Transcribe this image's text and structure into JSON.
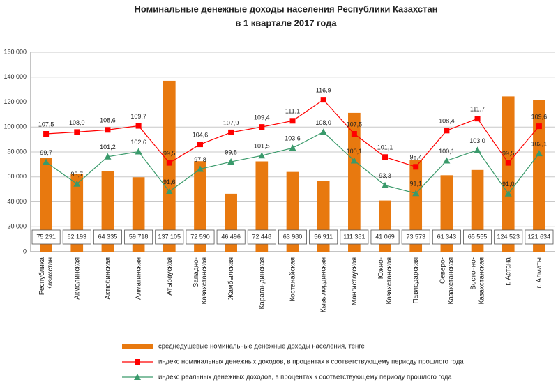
{
  "chart_data": {
    "type": "bar-line",
    "title": [
      "Номинальные  денежные доходы населения Республики Казахстан",
      "в 1 квартале  2017 года"
    ],
    "categories": [
      "Республика\nКазахстан",
      "Акмолинская",
      "Актюбинская",
      "Алматинская",
      "Атырауская",
      "Западно-\nКазахстанская",
      "Жамбылская",
      "Карагандинская",
      "Костанайская",
      "Кызылординская",
      "Мангистауская",
      "Южно-\nКазахстанская",
      "Павлодарская",
      "Северо-\nКазахстанская",
      "Восточно-\nКазахстанская",
      "г. Астана",
      "г. Алматы"
    ],
    "ylim": [
      0,
      160000
    ],
    "yticks": [
      {
        "value": 0,
        "label": "0"
      },
      {
        "value": 20000,
        "label": "20 000"
      },
      {
        "value": 40000,
        "label": "40 000"
      },
      {
        "value": 60000,
        "label": "60 000"
      },
      {
        "value": 80000,
        "label": "80 000"
      },
      {
        "value": 100000,
        "label": "100 000"
      },
      {
        "value": 120000,
        "label": "120 000"
      },
      {
        "value": 140000,
        "label": "140 000"
      },
      {
        "value": 160000,
        "label": "160 000"
      }
    ],
    "y2lim": [
      75,
      130
    ],
    "grid": true,
    "series": [
      {
        "name": "среднедушевые номинальные денежные доходы населения, тенге",
        "type": "bar",
        "color": "#e8790f",
        "values": [
          75291,
          62193,
          64335,
          59718,
          137105,
          72590,
          46496,
          72448,
          63980,
          56911,
          111381,
          41069,
          73573,
          61343,
          65555,
          124523,
          121634
        ],
        "value_labels": [
          "75 291",
          "62 193",
          "64 335",
          "59 718",
          "137 105",
          "72 590",
          "46 496",
          "72 448",
          "63 980",
          "56 911",
          "111 381",
          "41 069",
          "73 573",
          "61 343",
          "65 555",
          "124 523",
          "121 634"
        ]
      },
      {
        "name": "индекс номинальных денежных доходов, в процентах к соответствующему периоду прошлого года",
        "type": "line",
        "axis": "y2",
        "marker": "square",
        "color": "#ff0000",
        "values": [
          107.5,
          108.0,
          108.6,
          109.7,
          99.5,
          104.6,
          107.9,
          109.4,
          111.1,
          116.9,
          107.5,
          101.1,
          98.4,
          108.4,
          111.7,
          99.5,
          109.6
        ],
        "value_labels": [
          "107,5",
          "108,0",
          "108,6",
          "109,7",
          "99,5",
          "104,6",
          "107,9",
          "109,4",
          "111,1",
          "116,9",
          "107,5",
          "101,1",
          "98,4",
          "108,4",
          "111,7",
          "99,5",
          "109,6"
        ]
      },
      {
        "name": "индекс реальных денежных доходов, в процентах к соответствующему периоду прошлого года",
        "type": "line",
        "axis": "y2",
        "marker": "triangle",
        "color": "#3a9a6b",
        "values": [
          99.7,
          93.7,
          101.2,
          102.6,
          91.6,
          97.8,
          99.8,
          101.5,
          103.6,
          108.0,
          100.1,
          93.3,
          91.1,
          100.1,
          103.0,
          91.0,
          102.1
        ],
        "value_labels": [
          "99,7",
          "93,7",
          "101,2",
          "102,6",
          "91,6",
          "97,8",
          "99,8",
          "101,5",
          "103,6",
          "108,0",
          "100,1",
          "93,3",
          "91,1",
          "100,1",
          "103,0",
          "91,0",
          "102,1"
        ]
      }
    ]
  }
}
